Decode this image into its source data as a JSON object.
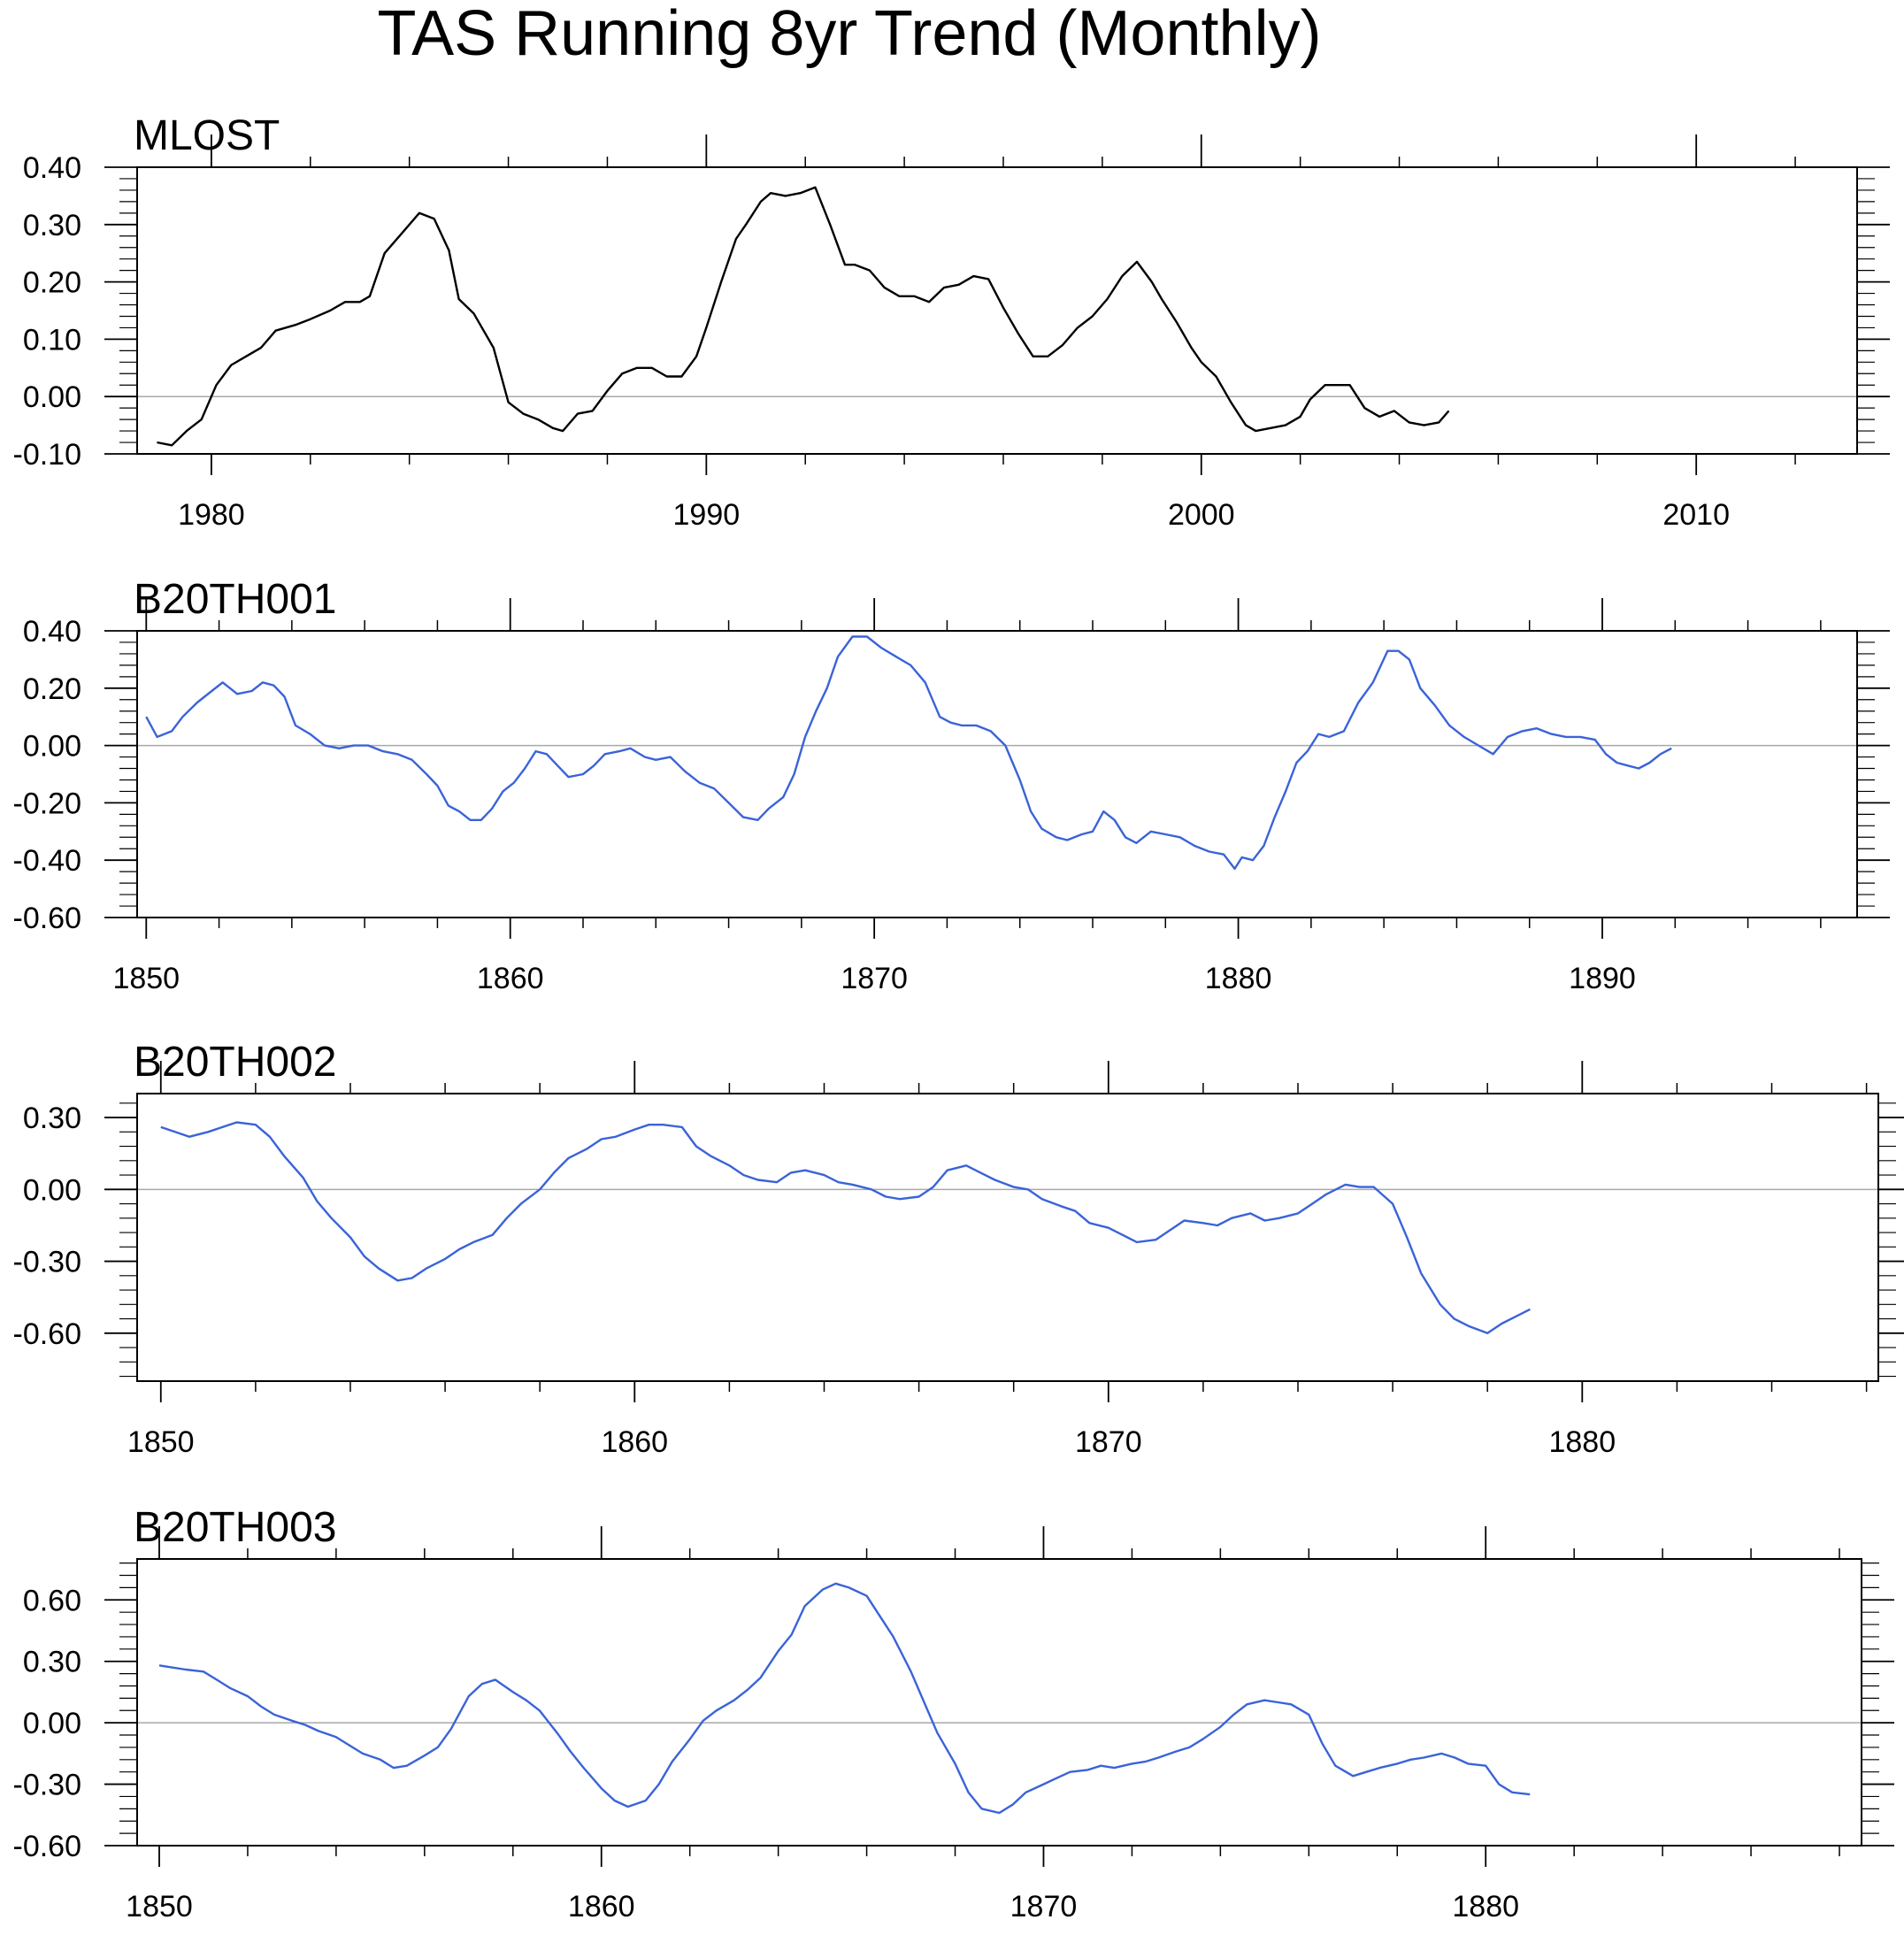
{
  "title": "TAS Running 8yr Trend (Monthly)",
  "chart_data": [
    {
      "type": "line",
      "title": "MLOST",
      "line_color": "#000000",
      "xlim": [
        1978.5,
        2013.25
      ],
      "ylim": [
        -0.1,
        0.4
      ],
      "xticks": [
        1980,
        1990,
        2000,
        2010
      ],
      "xtick_labels": [
        "1980",
        "1990",
        "2000",
        "2010"
      ],
      "yticks": [
        -0.1,
        0.0,
        0.1,
        0.2,
        0.3,
        0.4
      ],
      "ytick_labels": [
        "-0.10",
        "0.00",
        "0.10",
        "0.20",
        "0.30",
        "0.40"
      ],
      "zero_line": true,
      "series": [
        {
          "x": [
            1978.9,
            1979.2,
            1979.5,
            1979.8,
            1980.1,
            1980.4,
            1980.7,
            1981.0,
            1981.3,
            1981.7,
            1982.0,
            1982.4,
            1982.7,
            1983.0,
            1983.2,
            1983.5,
            1983.9,
            1984.2,
            1984.5,
            1984.8,
            1985.0,
            1985.3,
            1985.7,
            1986.0,
            1986.3,
            1986.6,
            1986.9,
            1987.1,
            1987.4,
            1987.7,
            1988.0,
            1988.3,
            1988.6,
            1988.9,
            1989.2,
            1989.5,
            1989.8,
            1990.0,
            1990.3,
            1990.6,
            1990.8,
            1991.1,
            1991.3,
            1991.6,
            1991.9,
            1992.2,
            1992.5,
            1992.8,
            1993.0,
            1993.3,
            1993.6,
            1993.9,
            1994.2,
            1994.5,
            1994.8,
            1995.1,
            1995.4,
            1995.7,
            1996.0,
            1996.3,
            1996.6,
            1996.9,
            1997.2,
            1997.5,
            1997.8,
            1998.1,
            1998.4,
            1998.7,
            1999.0,
            1999.2,
            1999.5,
            1999.8,
            2000.0,
            2000.3,
            2000.6,
            2000.9,
            2001.1,
            2001.4,
            2001.7,
            2002.0,
            2002.2,
            2002.5,
            2002.8,
            2003.0,
            2003.3,
            2003.6,
            2003.9,
            2004.2,
            2004.5,
            2004.8,
            2005.0
          ],
          "y": [
            -0.08,
            -0.085,
            -0.06,
            -0.04,
            0.02,
            0.055,
            0.07,
            0.085,
            0.115,
            0.125,
            0.135,
            0.15,
            0.165,
            0.165,
            0.175,
            0.25,
            0.29,
            0.32,
            0.31,
            0.255,
            0.17,
            0.145,
            0.085,
            -0.01,
            -0.03,
            -0.04,
            -0.055,
            -0.06,
            -0.03,
            -0.025,
            0.01,
            0.04,
            0.05,
            0.05,
            0.035,
            0.035,
            0.07,
            0.12,
            0.2,
            0.275,
            0.3,
            0.34,
            0.355,
            0.35,
            0.355,
            0.365,
            0.3,
            0.23,
            0.23,
            0.22,
            0.19,
            0.175,
            0.175,
            0.165,
            0.19,
            0.195,
            0.21,
            0.205,
            0.155,
            0.11,
            0.07,
            0.07,
            0.09,
            0.12,
            0.14,
            0.17,
            0.21,
            0.235,
            0.2,
            0.17,
            0.13,
            0.085,
            0.06,
            0.035,
            -0.01,
            -0.05,
            -0.06,
            -0.055,
            -0.05,
            -0.035,
            -0.005,
            0.02,
            0.02,
            0.02,
            -0.02,
            -0.035,
            -0.025,
            -0.045,
            -0.05,
            -0.045,
            -0.025
          ]
        }
      ]
    },
    {
      "type": "line",
      "title": "B20TH001",
      "line_color": "#3a63d8",
      "xlim": [
        1849.75,
        1897.0
      ],
      "ylim": [
        -0.6,
        0.4
      ],
      "xticks": [
        1850,
        1860,
        1870,
        1880,
        1890
      ],
      "xtick_labels": [
        "1850",
        "1860",
        "1870",
        "1880",
        "1890"
      ],
      "yticks": [
        -0.6,
        -0.4,
        -0.2,
        0.0,
        0.2,
        0.4
      ],
      "ytick_labels": [
        "-0.60",
        "-0.40",
        "-0.20",
        "0.00",
        "0.20",
        "0.40"
      ],
      "zero_line": true,
      "series": [
        {
          "x": [
            1850.0,
            1850.3,
            1850.7,
            1851.0,
            1851.4,
            1851.8,
            1852.1,
            1852.5,
            1852.9,
            1853.2,
            1853.5,
            1853.8,
            1854.1,
            1854.5,
            1854.9,
            1855.3,
            1855.7,
            1856.1,
            1856.5,
            1856.9,
            1857.3,
            1857.7,
            1858.0,
            1858.3,
            1858.6,
            1858.9,
            1859.2,
            1859.5,
            1859.8,
            1860.1,
            1860.4,
            1860.7,
            1861.0,
            1861.3,
            1861.6,
            1862.0,
            1862.3,
            1862.6,
            1863.0,
            1863.3,
            1863.7,
            1864.0,
            1864.4,
            1864.8,
            1865.2,
            1865.6,
            1866.0,
            1866.4,
            1866.8,
            1867.1,
            1867.5,
            1867.8,
            1868.1,
            1868.4,
            1868.7,
            1869.0,
            1869.4,
            1869.8,
            1870.2,
            1870.6,
            1871.0,
            1871.4,
            1871.8,
            1872.1,
            1872.4,
            1872.8,
            1873.2,
            1873.6,
            1874.0,
            1874.3,
            1874.6,
            1875.0,
            1875.3,
            1875.7,
            1876.0,
            1876.3,
            1876.6,
            1876.9,
            1877.2,
            1877.6,
            1878.0,
            1878.4,
            1878.8,
            1879.2,
            1879.6,
            1879.9,
            1880.1,
            1880.4,
            1880.7,
            1881.0,
            1881.3,
            1881.6,
            1881.9,
            1882.2,
            1882.5,
            1882.9,
            1883.3,
            1883.7,
            1884.1,
            1884.4,
            1884.7,
            1885.0,
            1885.4,
            1885.8,
            1886.2,
            1886.6,
            1887.0,
            1887.4,
            1887.8,
            1888.2,
            1888.6,
            1889.0,
            1889.4,
            1889.8,
            1890.1,
            1890.4,
            1890.7,
            1891.0,
            1891.3,
            1891.6,
            1891.9
          ],
          "y": [
            0.1,
            0.03,
            0.05,
            0.1,
            0.15,
            0.19,
            0.22,
            0.18,
            0.19,
            0.22,
            0.21,
            0.17,
            0.07,
            0.04,
            0.0,
            -0.01,
            0.0,
            0.0,
            -0.02,
            -0.03,
            -0.05,
            -0.1,
            -0.14,
            -0.21,
            -0.23,
            -0.26,
            -0.26,
            -0.22,
            -0.16,
            -0.13,
            -0.08,
            -0.02,
            -0.03,
            -0.07,
            -0.11,
            -0.1,
            -0.07,
            -0.03,
            -0.02,
            -0.01,
            -0.04,
            -0.05,
            -0.04,
            -0.09,
            -0.13,
            -0.15,
            -0.2,
            -0.25,
            -0.26,
            -0.22,
            -0.18,
            -0.1,
            0.03,
            0.12,
            0.2,
            0.31,
            0.38,
            0.38,
            0.34,
            0.31,
            0.28,
            0.22,
            0.1,
            0.08,
            0.07,
            0.07,
            0.05,
            0.0,
            -0.12,
            -0.23,
            -0.29,
            -0.32,
            -0.33,
            -0.31,
            -0.3,
            -0.23,
            -0.26,
            -0.32,
            -0.34,
            -0.3,
            -0.31,
            -0.32,
            -0.35,
            -0.37,
            -0.38,
            -0.43,
            -0.39,
            -0.4,
            -0.35,
            -0.25,
            -0.16,
            -0.06,
            -0.02,
            0.04,
            0.03,
            0.05,
            0.15,
            0.22,
            0.33,
            0.33,
            0.3,
            0.2,
            0.14,
            0.07,
            0.03,
            0.0,
            -0.03,
            0.03,
            0.05,
            0.06,
            0.04,
            0.03,
            0.03,
            0.02,
            -0.03,
            -0.06,
            -0.07,
            -0.08,
            -0.06,
            -0.03,
            -0.01
          ]
        }
      ]
    },
    {
      "type": "line",
      "title": "B20TH002",
      "line_color": "#3a63d8",
      "xlim": [
        1849.5,
        1886.25
      ],
      "ylim": [
        -0.8,
        0.4
      ],
      "xticks": [
        1850,
        1860,
        1870,
        1880
      ],
      "xtick_labels": [
        "1850",
        "1860",
        "1870",
        "1880"
      ],
      "yticks": [
        -0.6,
        -0.3,
        0.0,
        0.3
      ],
      "ytick_labels": [
        "-0.60",
        "-0.30",
        "0.00",
        "0.30"
      ],
      "zero_line": true,
      "series": [
        {
          "x": [
            1850.0,
            1850.3,
            1850.6,
            1851.0,
            1851.3,
            1851.6,
            1852.0,
            1852.3,
            1852.6,
            1853.0,
            1853.3,
            1853.6,
            1854.0,
            1854.3,
            1854.6,
            1855.0,
            1855.3,
            1855.6,
            1856.0,
            1856.3,
            1856.6,
            1857.0,
            1857.3,
            1857.6,
            1858.0,
            1858.3,
            1858.6,
            1859.0,
            1859.3,
            1859.6,
            1860.0,
            1860.3,
            1860.6,
            1861.0,
            1861.3,
            1861.6,
            1862.0,
            1862.3,
            1862.6,
            1863.0,
            1863.3,
            1863.6,
            1864.0,
            1864.3,
            1864.6,
            1865.0,
            1865.3,
            1865.6,
            1866.0,
            1866.3,
            1866.6,
            1867.0,
            1867.3,
            1867.6,
            1868.0,
            1868.3,
            1868.6,
            1869.0,
            1869.3,
            1869.6,
            1870.0,
            1870.3,
            1870.6,
            1871.0,
            1871.3,
            1871.6,
            1872.0,
            1872.3,
            1872.6,
            1873.0,
            1873.3,
            1873.6,
            1874.0,
            1874.3,
            1874.6,
            1875.0,
            1875.3,
            1875.6,
            1876.0,
            1876.3,
            1876.6,
            1877.0,
            1877.3,
            1877.6,
            1878.0,
            1878.3,
            1878.6,
            1878.9
          ],
          "y": [
            0.26,
            0.24,
            0.22,
            0.24,
            0.26,
            0.28,
            0.27,
            0.22,
            0.14,
            0.05,
            -0.05,
            -0.12,
            -0.2,
            -0.28,
            -0.33,
            -0.38,
            -0.37,
            -0.33,
            -0.29,
            -0.25,
            -0.22,
            -0.19,
            -0.12,
            -0.06,
            0.0,
            0.07,
            0.13,
            0.17,
            0.21,
            0.22,
            0.25,
            0.27,
            0.27,
            0.26,
            0.18,
            0.14,
            0.1,
            0.06,
            0.04,
            0.03,
            0.07,
            0.08,
            0.06,
            0.03,
            0.02,
            0.0,
            -0.03,
            -0.04,
            -0.03,
            0.01,
            0.08,
            0.1,
            0.07,
            0.04,
            0.01,
            0.0,
            -0.04,
            -0.07,
            -0.09,
            -0.14,
            -0.16,
            -0.19,
            -0.22,
            -0.21,
            -0.17,
            -0.13,
            -0.14,
            -0.15,
            -0.12,
            -0.1,
            -0.13,
            -0.12,
            -0.1,
            -0.06,
            -0.02,
            0.02,
            0.01,
            0.01,
            -0.06,
            -0.2,
            -0.35,
            -0.48,
            -0.54,
            -0.57,
            -0.6,
            -0.56,
            -0.53,
            -0.5
          ]
        }
      ]
    },
    {
      "type": "line",
      "title": "B20TH003",
      "line_color": "#3a63d8",
      "xlim": [
        1849.5,
        1888.5
      ],
      "ylim": [
        -0.6,
        0.8
      ],
      "xticks": [
        1850,
        1860,
        1870,
        1880
      ],
      "xtick_labels": [
        "1850",
        "1860",
        "1870",
        "1880"
      ],
      "yticks": [
        -0.6,
        -0.3,
        0.0,
        0.3,
        0.6
      ],
      "ytick_labels": [
        "-0.60",
        "-0.30",
        "0.00",
        "0.30",
        "0.60"
      ],
      "zero_line": true,
      "series": [
        {
          "x": [
            1850.0,
            1850.3,
            1850.6,
            1851.0,
            1851.3,
            1851.6,
            1852.0,
            1852.3,
            1852.6,
            1853.0,
            1853.3,
            1853.6,
            1854.0,
            1854.3,
            1854.6,
            1855.0,
            1855.3,
            1855.6,
            1856.0,
            1856.3,
            1856.6,
            1857.0,
            1857.3,
            1857.6,
            1858.0,
            1858.3,
            1858.6,
            1859.0,
            1859.3,
            1859.6,
            1860.0,
            1860.3,
            1860.6,
            1861.0,
            1861.3,
            1861.6,
            1862.0,
            1862.3,
            1862.6,
            1863.0,
            1863.3,
            1863.6,
            1864.0,
            1864.3,
            1864.6,
            1865.0,
            1865.3,
            1865.6,
            1866.0,
            1866.3,
            1866.6,
            1867.0,
            1867.3,
            1867.6,
            1868.0,
            1868.3,
            1868.6,
            1869.0,
            1869.3,
            1869.6,
            1870.0,
            1870.3,
            1870.6,
            1871.0,
            1871.3,
            1871.6,
            1872.0,
            1872.3,
            1872.6,
            1873.0,
            1873.3,
            1873.6,
            1874.0,
            1874.3,
            1874.6,
            1875.0,
            1875.3,
            1875.6,
            1876.0,
            1876.3,
            1876.6,
            1877.0,
            1877.3,
            1877.6,
            1878.0,
            1878.3,
            1878.6,
            1879.0,
            1879.3,
            1879.6,
            1880.0,
            1880.3,
            1880.6,
            1881.0
          ],
          "y": [
            0.28,
            0.27,
            0.26,
            0.25,
            0.21,
            0.17,
            0.13,
            0.08,
            0.04,
            0.01,
            -0.01,
            -0.04,
            -0.07,
            -0.11,
            -0.15,
            -0.18,
            -0.22,
            -0.21,
            -0.16,
            -0.12,
            -0.03,
            0.13,
            0.19,
            0.21,
            0.15,
            0.11,
            0.06,
            -0.05,
            -0.14,
            -0.22,
            -0.32,
            -0.38,
            -0.41,
            -0.38,
            -0.3,
            -0.19,
            -0.08,
            0.01,
            0.06,
            0.11,
            0.16,
            0.22,
            0.35,
            0.43,
            0.57,
            0.65,
            0.68,
            0.66,
            0.62,
            0.52,
            0.42,
            0.25,
            0.1,
            -0.05,
            -0.2,
            -0.34,
            -0.42,
            -0.44,
            -0.4,
            -0.34,
            -0.3,
            -0.27,
            -0.24,
            -0.23,
            -0.21,
            -0.22,
            -0.2,
            -0.19,
            -0.17,
            -0.14,
            -0.12,
            -0.08,
            -0.02,
            0.04,
            0.09,
            0.11,
            0.1,
            0.09,
            0.04,
            -0.1,
            -0.21,
            -0.26,
            -0.24,
            -0.22,
            -0.2,
            -0.18,
            -0.17,
            -0.15,
            -0.17,
            -0.2,
            -0.21,
            -0.3,
            -0.34,
            -0.35
          ]
        }
      ]
    }
  ]
}
